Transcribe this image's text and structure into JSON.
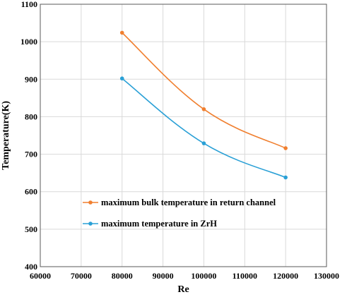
{
  "chart_data": {
    "type": "line",
    "title": "",
    "xlabel": "Re",
    "ylabel": "Temperature(K)",
    "xlim": [
      60000,
      130000
    ],
    "ylim": [
      400,
      1100
    ],
    "xticks": [
      60000,
      70000,
      80000,
      90000,
      100000,
      110000,
      120000,
      130000
    ],
    "yticks": [
      400,
      500,
      600,
      700,
      800,
      900,
      1000,
      1100
    ],
    "grid": true,
    "legend_position": "inside-lower-left",
    "series": [
      {
        "name": "maximum bulk temperature in return channel",
        "color": "#f07f2f",
        "x": [
          80000,
          100000,
          120000
        ],
        "y": [
          1024,
          820,
          716
        ]
      },
      {
        "name": "maximum temperature in ZrH",
        "color": "#2aa0d6",
        "x": [
          80000,
          100000,
          120000
        ],
        "y": [
          902,
          729,
          638
        ]
      }
    ]
  }
}
